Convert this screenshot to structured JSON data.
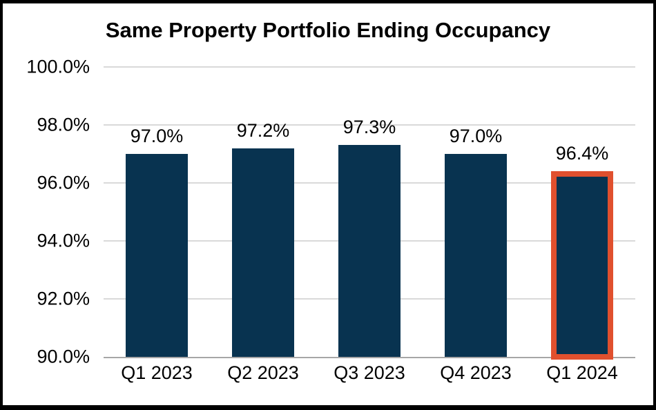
{
  "chart_data": {
    "type": "bar",
    "title": "Same Property Portfolio Ending Occupancy",
    "categories": [
      "Q1 2023",
      "Q2 2023",
      "Q3 2023",
      "Q4 2023",
      "Q1 2024"
    ],
    "values": [
      97.0,
      97.2,
      97.3,
      97.0,
      96.4
    ],
    "data_labels": [
      "97.0%",
      "97.2%",
      "97.3%",
      "97.0%",
      "96.4%"
    ],
    "highlight_index": 4,
    "ylim": [
      90,
      100
    ],
    "yticks": [
      {
        "value": 100,
        "label": "100.0%"
      },
      {
        "value": 98,
        "label": "98.0%"
      },
      {
        "value": 96,
        "label": "96.0%"
      },
      {
        "value": 94,
        "label": "94.0%"
      },
      {
        "value": 92,
        "label": "92.0%"
      },
      {
        "value": 90,
        "label": "90.0%"
      }
    ],
    "xlabel": "",
    "ylabel": "",
    "grid": "horizontal",
    "legend": "none",
    "colors": {
      "bar": "#083350",
      "highlight_border": "#E0502E",
      "gridline": "#D9D9D9",
      "axis_line": "#A6A6A6",
      "frame": "#000000",
      "background": "#FFFFFF",
      "text": "#000000"
    }
  }
}
